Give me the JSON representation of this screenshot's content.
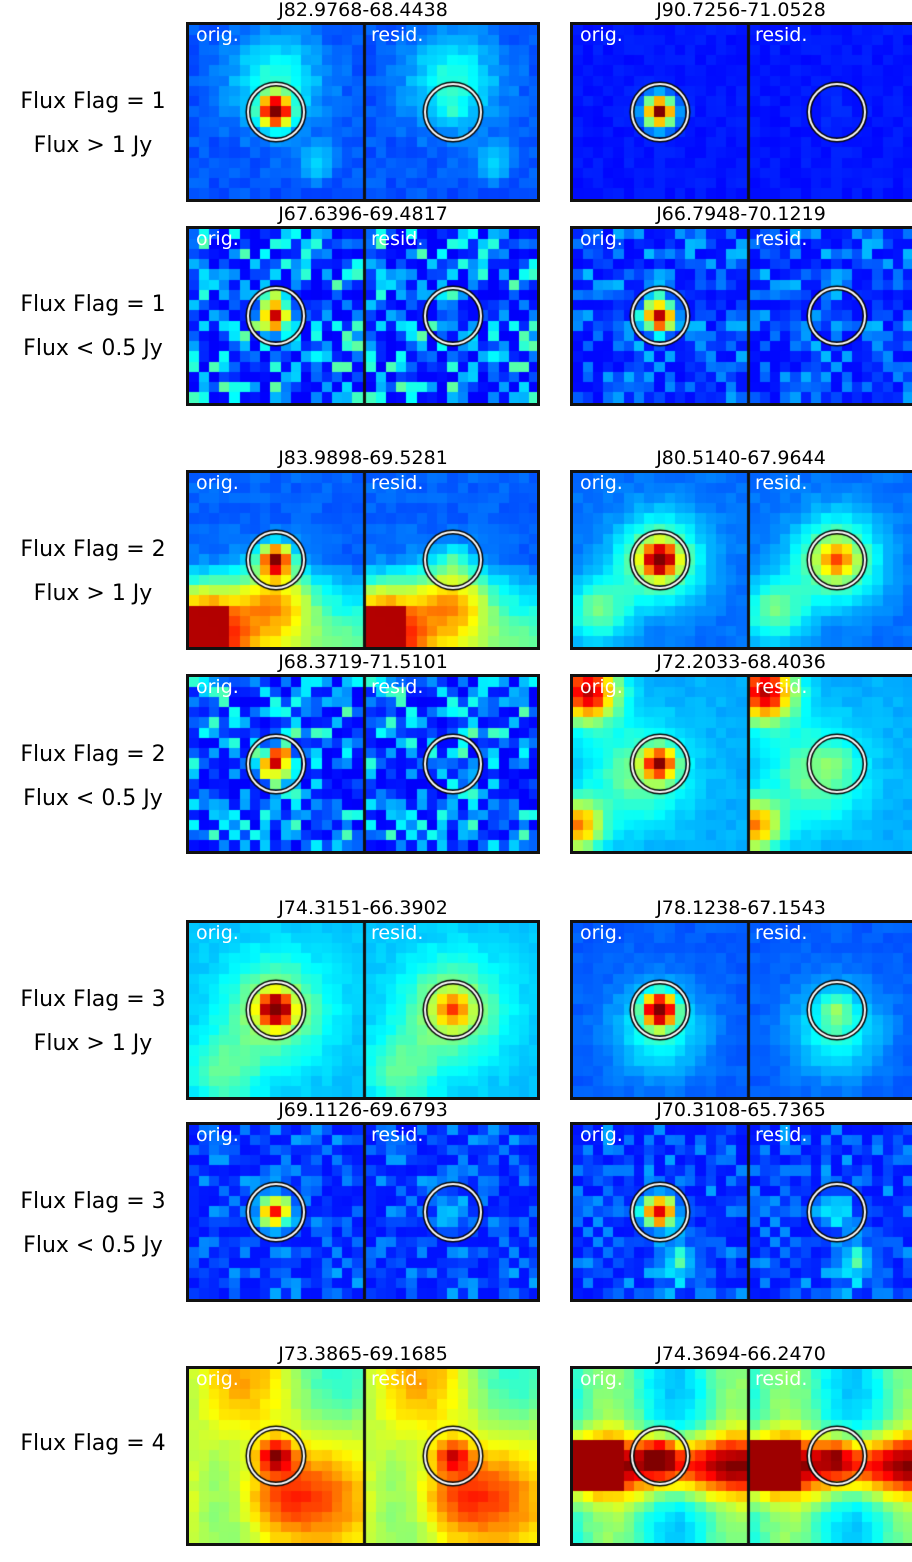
{
  "row_labels": [
    {
      "flag": "Flux Flag = 1",
      "flux": "Flux > 1 Jy"
    },
    {
      "flag": "Flux Flag = 1",
      "flux": "Flux < 0.5 Jy"
    },
    {
      "flag": "Flux Flag = 2",
      "flux": "Flux > 1 Jy"
    },
    {
      "flag": "Flux Flag = 2",
      "flux": "Flux < 0.5 Jy"
    },
    {
      "flag": "Flux Flag = 3",
      "flux": "Flux > 1 Jy"
    },
    {
      "flag": "Flux Flag = 3",
      "flux": "Flux < 0.5 Jy"
    },
    {
      "flag": "Flux Flag = 4",
      "flux": ""
    }
  ],
  "sub_labels": {
    "orig": "orig.",
    "resid": "resid."
  },
  "panels": [
    {
      "title": "J82.9768-68.4438",
      "style": "bright-iso",
      "seed": 11
    },
    {
      "title": "J90.7256-71.0528",
      "style": "bright-clean",
      "seed": 12
    },
    {
      "title": "J67.6396-69.4817",
      "style": "faint-noisy",
      "seed": 13
    },
    {
      "title": "J66.7948-70.1219",
      "style": "faint-clean",
      "seed": 14
    },
    {
      "title": "J83.9898-69.5281",
      "style": "bright-ext-corner",
      "seed": 21
    },
    {
      "title": "J80.5140-67.9644",
      "style": "bright-ext-blob",
      "seed": 22
    },
    {
      "title": "J68.3719-71.5101",
      "style": "faint-noisy",
      "seed": 23
    },
    {
      "title": "J72.2033-68.4036",
      "style": "faint-ext-red",
      "seed": 24
    },
    {
      "title": "J74.3151-66.3902",
      "style": "bright-yellow",
      "seed": 31
    },
    {
      "title": "J78.1238-67.1543",
      "style": "bright-resid",
      "seed": 32
    },
    {
      "title": "J69.1126-69.6793",
      "style": "faint-resid",
      "seed": 33
    },
    {
      "title": "J70.3108-65.7365",
      "style": "faint-resid2",
      "seed": 34
    },
    {
      "title": "J73.3865-69.1685",
      "style": "hot-arc",
      "seed": 41
    },
    {
      "title": "J74.3694-66.2470",
      "style": "hot-band",
      "seed": 42
    }
  ],
  "colors": {
    "circle_outer": "#ffffff",
    "circle_inner": "#000000",
    "frame": "#111111"
  }
}
